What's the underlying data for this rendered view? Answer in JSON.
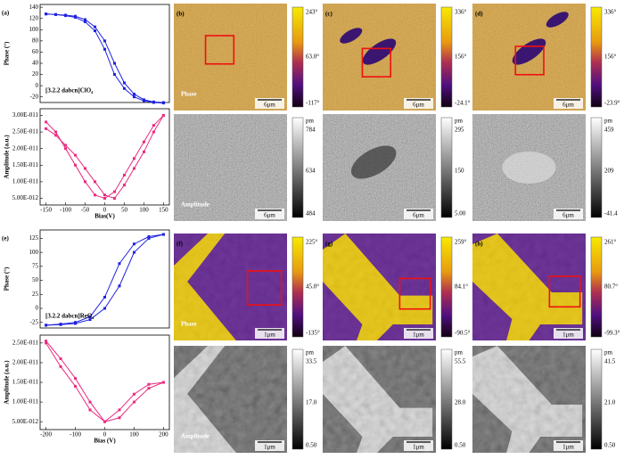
{
  "chart_data": [
    {
      "type": "line",
      "label": "(a)",
      "annotation": "[3.2.2 dabcn]ClO₄",
      "ylabel": "Phase (°)",
      "x": [
        -150,
        -125,
        -100,
        -75,
        -50,
        -25,
        0,
        25,
        50,
        75,
        100,
        125,
        150
      ],
      "series": [
        {
          "color": "#1f22e0",
          "values": [
            128,
            127,
            126,
            124,
            118,
            105,
            80,
            40,
            5,
            -15,
            -25,
            -29,
            -30
          ]
        },
        {
          "color": "#1f22e0",
          "values": [
            128,
            127,
            125,
            122,
            114,
            98,
            65,
            20,
            -5,
            -20,
            -27,
            -30,
            -31
          ]
        }
      ],
      "xlim": [
        -165,
        165
      ],
      "ylim": [
        -30,
        145
      ],
      "yticks": [
        -20,
        0,
        20,
        40,
        60,
        80,
        100,
        120,
        140
      ]
    },
    {
      "type": "line",
      "xlabel": "Bias(V)",
      "ylabel": "Amplitude (a.u.)",
      "x": [
        -150,
        -125,
        -100,
        -75,
        -50,
        -25,
        0,
        25,
        50,
        75,
        100,
        125,
        150
      ],
      "series": [
        {
          "color": "#ea2a80",
          "values": [
            2.6e-11,
            2.4e-11,
            2.1e-11,
            1.8e-11,
            1.4e-11,
            1e-11,
            6e-12,
            5e-12,
            9e-12,
            1.4e-11,
            1.9e-11,
            2.5e-11,
            3e-11
          ]
        },
        {
          "color": "#ea2a80",
          "values": [
            2.8e-11,
            2.5e-11,
            2e-11,
            1.5e-11,
            1e-11,
            6e-12,
            5e-12,
            7e-12,
            1.2e-11,
            1.7e-11,
            2.2e-11,
            2.7e-11,
            3e-11
          ]
        }
      ],
      "xlim": [
        -165,
        165
      ],
      "ylim": [
        3e-12,
        3.2e-11
      ],
      "xticks": [
        -150,
        -100,
        -50,
        0,
        50,
        100,
        150
      ],
      "yticks": [
        {
          "value": 5e-12,
          "label": "5.00E-012"
        },
        {
          "value": 1e-11,
          "label": "1.00E-011"
        },
        {
          "value": 1.5e-11,
          "label": "1.50E-011"
        },
        {
          "value": 2e-11,
          "label": "2.00E-011"
        },
        {
          "value": 2.5e-11,
          "label": "2.50E-011"
        },
        {
          "value": 3e-11,
          "label": "3.00E-011"
        }
      ]
    },
    {
      "type": "line",
      "label": "(e)",
      "annotation": "[3.2.2 dabcn]ReO₄",
      "ylabel": "Phase (°)",
      "x": [
        -200,
        -150,
        -100,
        -50,
        0,
        50,
        100,
        150,
        200
      ],
      "series": [
        {
          "color": "#1f22e0",
          "values": [
            -30,
            -28,
            -25,
            -15,
            20,
            80,
            115,
            128,
            132
          ]
        },
        {
          "color": "#1f22e0",
          "values": [
            -30,
            -29,
            -27,
            -20,
            0,
            40,
            100,
            125,
            132
          ]
        }
      ],
      "xlim": [
        -220,
        220
      ],
      "ylim": [
        -35,
        140
      ],
      "yticks": [
        -25,
        0,
        25,
        50,
        75,
        100,
        125
      ]
    },
    {
      "type": "line",
      "xlabel": "Bias (V)",
      "ylabel": "Amplitude (a.u.)",
      "x": [
        -200,
        -150,
        -100,
        -50,
        0,
        50,
        100,
        150,
        200
      ],
      "series": [
        {
          "color": "#ea2a80",
          "values": [
            2.55e-11,
            2.1e-11,
            1.6e-11,
            1e-11,
            5e-12,
            6e-12,
            1e-11,
            1.35e-11,
            1.5e-11
          ]
        },
        {
          "color": "#ea2a80",
          "values": [
            2.5e-11,
            1.9e-11,
            1.4e-11,
            8e-12,
            5e-12,
            8e-12,
            1.2e-11,
            1.45e-11,
            1.5e-11
          ]
        }
      ],
      "xlim": [
        -220,
        220
      ],
      "ylim": [
        3e-12,
        2.7e-11
      ],
      "xticks": [
        -200,
        -100,
        0,
        100,
        200
      ],
      "yticks": [
        {
          "value": 5e-12,
          "label": "5.00E-012"
        },
        {
          "value": 1e-11,
          "label": "1.00E-011"
        },
        {
          "value": 1.5e-11,
          "label": "1.50E-011"
        },
        {
          "value": 2e-11,
          "label": "2.00E-011"
        },
        {
          "value": 2.5e-11,
          "label": "2.50E-011"
        }
      ]
    }
  ],
  "panels": [
    {
      "label": "(b)",
      "colorbar": [
        "243°",
        "63.0°",
        "-117°"
      ],
      "scale": "6μm",
      "caption": "Phase"
    },
    {
      "label": "(c)",
      "colorbar": [
        "336°",
        "156°",
        "-24.1°"
      ],
      "scale": "6μm"
    },
    {
      "label": "(d)",
      "colorbar": [
        "336°",
        "156°",
        "-23.9°"
      ],
      "scale": "6μm"
    },
    {
      "unit": "pm",
      "colorbar": [
        "784",
        "634",
        "484"
      ],
      "scale": "6μm",
      "caption": "Amplitude"
    },
    {
      "unit": "pm",
      "colorbar": [
        "295",
        "150",
        "5.00"
      ],
      "scale": "6μm"
    },
    {
      "unit": "pm",
      "colorbar": [
        "459",
        "209",
        "-41.4"
      ],
      "scale": "6μm"
    },
    {
      "label": "(f)",
      "colorbar": [
        "225°",
        "45.0°",
        "-135°"
      ],
      "scale": "1μm",
      "caption": "Phase"
    },
    {
      "label": "(g)",
      "colorbar": [
        "259°",
        "84.1°",
        "-90.5°"
      ],
      "scale": "1μm"
    },
    {
      "label": "(h)",
      "colorbar": [
        "261°",
        "80.7°",
        "-99.3°"
      ],
      "scale": "1μm"
    },
    {
      "unit": "pm",
      "colorbar": [
        "33.5",
        "17.0",
        "0.50"
      ],
      "scale": "1μm",
      "caption": "Amplitude"
    },
    {
      "unit": "pm",
      "colorbar": [
        "55.5",
        "28.0",
        "0.50"
      ],
      "scale": "1μm"
    },
    {
      "unit": "pm",
      "colorbar": [
        "41.5",
        "21.0",
        "0.50"
      ],
      "scale": "1μm"
    }
  ]
}
